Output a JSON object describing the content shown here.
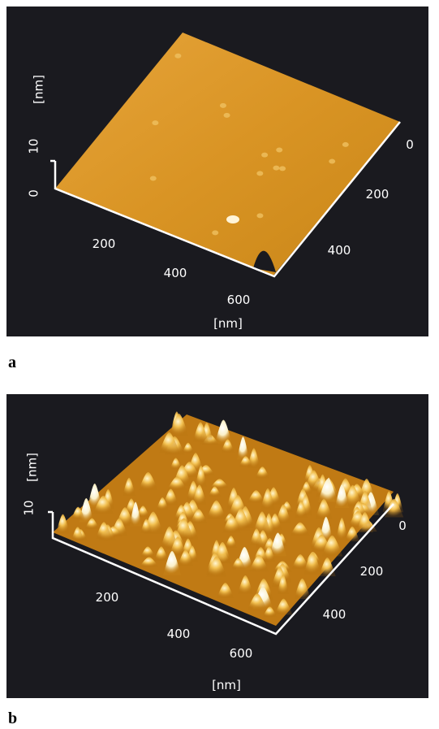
{
  "panels": [
    {
      "label": "a",
      "z_unit": "[nm]",
      "z_ticks": [
        "10",
        "0"
      ],
      "x_ticks": [
        "200",
        "400",
        "600"
      ],
      "x_unit": "[nm]",
      "y_ticks": [
        "0",
        "200",
        "400"
      ]
    },
    {
      "label": "b",
      "z_unit": "[nm]",
      "z_ticks": [
        "10"
      ],
      "x_ticks": [
        "200",
        "400",
        "600"
      ],
      "x_unit": "[nm]",
      "y_ticks": [
        "0",
        "200",
        "400"
      ]
    }
  ]
}
